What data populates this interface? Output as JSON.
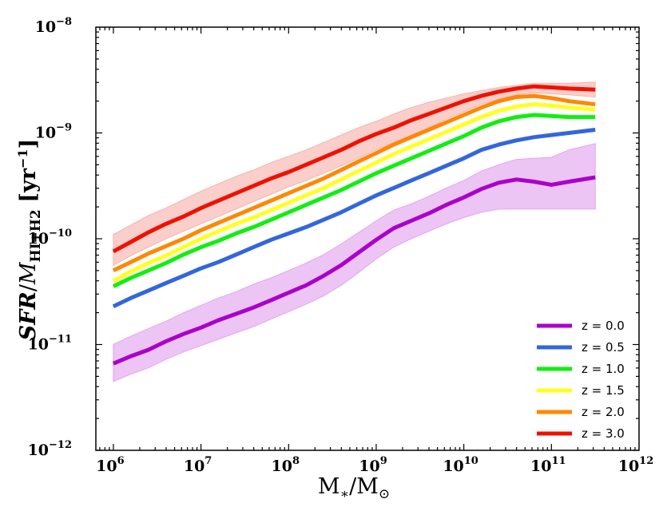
{
  "chart_data": {
    "type": "line",
    "title": "",
    "xlabel": "M*/M⊙",
    "ylabel": "SFR/MHI+H2 [yr−1]",
    "xscale": "log",
    "yscale": "log",
    "xlim_log10": [
      5.8,
      12.0
    ],
    "ylim_log10": [
      -12,
      -8
    ],
    "x_ticks": [
      {
        "base": "10",
        "exp": "6"
      },
      {
        "base": "10",
        "exp": "7"
      },
      {
        "base": "10",
        "exp": "8"
      },
      {
        "base": "10",
        "exp": "9"
      },
      {
        "base": "10",
        "exp": "10"
      },
      {
        "base": "10",
        "exp": "11"
      },
      {
        "base": "10",
        "exp": "12"
      }
    ],
    "y_ticks": [
      {
        "base": "10",
        "exp": "−8"
      },
      {
        "base": "10",
        "exp": "−9"
      },
      {
        "base": "10",
        "exp": "−10"
      },
      {
        "base": "10",
        "exp": "−11"
      },
      {
        "base": "10",
        "exp": "−12"
      }
    ],
    "x_log10": [
      6.0,
      6.2,
      6.4,
      6.6,
      6.8,
      7.0,
      7.2,
      7.4,
      7.6,
      7.8,
      8.0,
      8.2,
      8.4,
      8.6,
      8.8,
      9.0,
      9.2,
      9.4,
      9.6,
      9.8,
      10.0,
      10.2,
      10.4,
      10.6,
      10.8,
      11.0,
      11.2,
      11.5
    ],
    "series": [
      {
        "name": "z = 0.0",
        "color": "#aa00cc",
        "y_log10": [
          -11.18,
          -11.11,
          -11.05,
          -10.97,
          -10.9,
          -10.84,
          -10.77,
          -10.71,
          -10.65,
          -10.58,
          -10.51,
          -10.44,
          -10.35,
          -10.25,
          -10.13,
          -10.01,
          -9.9,
          -9.83,
          -9.76,
          -9.68,
          -9.61,
          -9.53,
          -9.47,
          -9.44,
          -9.46,
          -9.49,
          -9.46,
          -9.42
        ],
        "band_upper_log10": [
          -11.0,
          -10.92,
          -10.85,
          -10.78,
          -10.7,
          -10.63,
          -10.56,
          -10.5,
          -10.43,
          -10.37,
          -10.3,
          -10.23,
          -10.15,
          -10.05,
          -9.94,
          -9.83,
          -9.73,
          -9.67,
          -9.6,
          -9.52,
          -9.45,
          -9.36,
          -9.3,
          -9.25,
          -9.24,
          -9.23,
          -9.16,
          -9.1
        ],
        "band_lower_log10": [
          -11.35,
          -11.28,
          -11.22,
          -11.14,
          -11.07,
          -11.01,
          -10.95,
          -10.89,
          -10.83,
          -10.76,
          -10.69,
          -10.62,
          -10.54,
          -10.44,
          -10.32,
          -10.19,
          -10.08,
          -10.0,
          -9.93,
          -9.86,
          -9.8,
          -9.75,
          -9.72,
          -9.72,
          -9.72,
          -9.72,
          -9.72,
          -9.72
        ]
      },
      {
        "name": "z = 0.5",
        "color": "#3366dd",
        "y_log10": [
          -10.64,
          -10.56,
          -10.49,
          -10.42,
          -10.35,
          -10.28,
          -10.22,
          -10.15,
          -10.08,
          -10.01,
          -9.95,
          -9.89,
          -9.82,
          -9.75,
          -9.67,
          -9.59,
          -9.52,
          -9.45,
          -9.38,
          -9.31,
          -9.24,
          -9.16,
          -9.11,
          -9.07,
          -9.04,
          -9.02,
          -9.0,
          -8.97
        ]
      },
      {
        "name": "z = 1.0",
        "color": "#11ee11",
        "y_log10": [
          -10.45,
          -10.37,
          -10.3,
          -10.23,
          -10.15,
          -10.08,
          -10.02,
          -9.95,
          -9.89,
          -9.82,
          -9.75,
          -9.68,
          -9.61,
          -9.54,
          -9.46,
          -9.38,
          -9.31,
          -9.24,
          -9.17,
          -9.1,
          -9.03,
          -8.95,
          -8.89,
          -8.85,
          -8.83,
          -8.84,
          -8.85,
          -8.85
        ]
      },
      {
        "name": "z = 1.5",
        "color": "#ffff22",
        "y_log10": [
          -10.4,
          -10.31,
          -10.23,
          -10.16,
          -10.08,
          -10.0,
          -9.93,
          -9.86,
          -9.8,
          -9.73,
          -9.66,
          -9.59,
          -9.52,
          -9.44,
          -9.36,
          -9.28,
          -9.2,
          -9.13,
          -9.06,
          -8.99,
          -8.92,
          -8.85,
          -8.79,
          -8.75,
          -8.73,
          -8.74,
          -8.76,
          -8.78
        ]
      },
      {
        "name": "z = 2.0",
        "color": "#ff8800",
        "y_log10": [
          -10.3,
          -10.22,
          -10.14,
          -10.07,
          -10.0,
          -9.92,
          -9.85,
          -9.78,
          -9.71,
          -9.64,
          -9.57,
          -9.5,
          -9.43,
          -9.35,
          -9.27,
          -9.19,
          -9.11,
          -9.04,
          -8.97,
          -8.9,
          -8.83,
          -8.76,
          -8.7,
          -8.66,
          -8.65,
          -8.67,
          -8.7,
          -8.73
        ]
      },
      {
        "name": "z = 3.0",
        "color": "#ee1100",
        "y_log10": [
          -10.12,
          -10.03,
          -9.94,
          -9.86,
          -9.79,
          -9.71,
          -9.64,
          -9.57,
          -9.5,
          -9.43,
          -9.37,
          -9.3,
          -9.23,
          -9.16,
          -9.08,
          -9.01,
          -8.95,
          -8.88,
          -8.82,
          -8.76,
          -8.7,
          -8.65,
          -8.61,
          -8.58,
          -8.56,
          -8.57,
          -8.58,
          -8.59
        ],
        "band_upper_log10": [
          -9.96,
          -9.87,
          -9.78,
          -9.71,
          -9.63,
          -9.55,
          -9.48,
          -9.41,
          -9.35,
          -9.28,
          -9.22,
          -9.16,
          -9.09,
          -9.02,
          -8.95,
          -8.89,
          -8.82,
          -8.76,
          -8.71,
          -8.67,
          -8.63,
          -8.6,
          -8.57,
          -8.55,
          -8.53,
          -8.53,
          -8.53,
          -8.52
        ],
        "band_lower_log10": [
          -10.25,
          -10.16,
          -10.08,
          -10.0,
          -9.93,
          -9.86,
          -9.79,
          -9.72,
          -9.65,
          -9.58,
          -9.51,
          -9.45,
          -9.38,
          -9.31,
          -9.24,
          -9.16,
          -9.09,
          -9.02,
          -8.95,
          -8.87,
          -8.8,
          -8.73,
          -8.68,
          -8.64,
          -8.62,
          -8.63,
          -8.64,
          -8.66
        ]
      }
    ],
    "legend": {
      "location": "lower-right",
      "entries": [
        "z = 0.0",
        "z = 0.5",
        "z = 1.0",
        "z = 1.5",
        "z = 2.0",
        "z = 3.0"
      ]
    },
    "colors": {
      "band_z0": "#e2a6ee",
      "band_z3": "#f7b3ae",
      "axis": "#000000"
    }
  }
}
